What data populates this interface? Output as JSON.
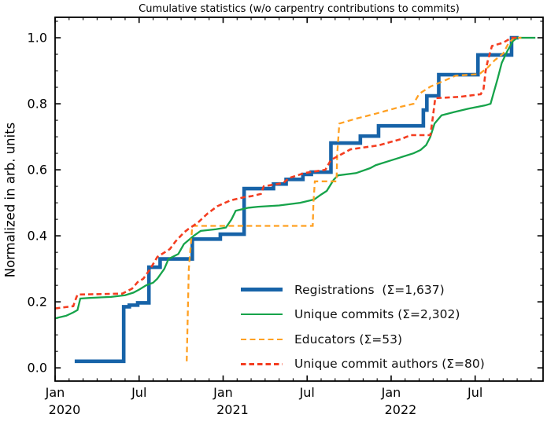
{
  "title": "Cumulative statistics (w/o carpentry contributions to commits)",
  "ylabel": "Normalized in arb. units",
  "legend": {
    "frame": false,
    "items": [
      {
        "label": "Registrations  (Σ=1,637)"
      },
      {
        "label": "Unique commits (Σ=2,302)"
      },
      {
        "label": "Educators (Σ=53)"
      },
      {
        "label": "Unique commit authors (Σ=80)"
      }
    ]
  },
  "chart_data": {
    "type": "line",
    "title": "Cumulative statistics (w/o carpentry contributions to commits)",
    "xlabel": "",
    "ylabel": "Normalized in arb. units",
    "grid": false,
    "legend_position": "lower-right-inside",
    "x_unit": "months since 2020-01-01",
    "xlim": [
      0,
      34.85
    ],
    "ylim": [
      -0.04,
      1.062
    ],
    "y_major_ticks": [
      {
        "v": 0.0,
        "label": "0.0"
      },
      {
        "v": 0.2,
        "label": "0.2"
      },
      {
        "v": 0.4,
        "label": "0.4"
      },
      {
        "v": 0.6,
        "label": "0.6"
      },
      {
        "v": 0.8,
        "label": "0.8"
      },
      {
        "v": 1.0,
        "label": "1.0"
      }
    ],
    "y_minor_step": 0.05,
    "x_major_ticks": [
      {
        "m": 0,
        "month_label": "Jan",
        "year_label": "2020"
      },
      {
        "m": 6,
        "month_label": "Jul",
        "year_label": ""
      },
      {
        "m": 12,
        "month_label": "Jan",
        "year_label": "2021"
      },
      {
        "m": 18,
        "month_label": "Jul",
        "year_label": ""
      },
      {
        "m": 24,
        "month_label": "Jan",
        "year_label": "2022"
      },
      {
        "m": 30,
        "month_label": "Jul",
        "year_label": ""
      }
    ],
    "x_minor_tick_every_months": 1,
    "series": [
      {
        "name": "Registrations  (Σ=1,637)",
        "total": 1637,
        "color": "#1763a8",
        "width": 4.6,
        "dash": null,
        "points": [
          [
            1.4,
            0.02
          ],
          [
            4.9,
            0.02
          ],
          [
            4.9,
            0.185
          ],
          [
            5.3,
            0.185
          ],
          [
            5.3,
            0.19
          ],
          [
            5.9,
            0.19
          ],
          [
            5.9,
            0.197
          ],
          [
            6.7,
            0.197
          ],
          [
            6.7,
            0.305
          ],
          [
            7.5,
            0.305
          ],
          [
            7.5,
            0.33
          ],
          [
            9.8,
            0.33
          ],
          [
            9.8,
            0.39
          ],
          [
            11.8,
            0.39
          ],
          [
            11.8,
            0.405
          ],
          [
            13.5,
            0.405
          ],
          [
            13.5,
            0.543
          ],
          [
            15.6,
            0.543
          ],
          [
            15.6,
            0.557
          ],
          [
            16.5,
            0.557
          ],
          [
            16.5,
            0.571
          ],
          [
            17.7,
            0.571
          ],
          [
            17.7,
            0.586
          ],
          [
            18.3,
            0.586
          ],
          [
            18.3,
            0.593
          ],
          [
            19.7,
            0.593
          ],
          [
            19.7,
            0.681
          ],
          [
            21.8,
            0.681
          ],
          [
            21.8,
            0.702
          ],
          [
            23.1,
            0.702
          ],
          [
            23.1,
            0.733
          ],
          [
            26.3,
            0.733
          ],
          [
            26.3,
            0.781
          ],
          [
            26.55,
            0.781
          ],
          [
            26.55,
            0.824
          ],
          [
            27.4,
            0.824
          ],
          [
            27.4,
            0.888
          ],
          [
            30.2,
            0.888
          ],
          [
            30.2,
            0.948
          ],
          [
            32.6,
            0.948
          ],
          [
            32.6,
            1.0
          ],
          [
            33.1,
            1.0
          ]
        ]
      },
      {
        "name": "Unique commits (Σ=2,302)",
        "total": 2302,
        "color": "#16a34a",
        "width": 2.3,
        "dash": null,
        "points": [
          [
            0,
            0.15
          ],
          [
            0.8,
            0.158
          ],
          [
            1.3,
            0.168
          ],
          [
            1.6,
            0.175
          ],
          [
            1.8,
            0.21
          ],
          [
            2.5,
            0.212
          ],
          [
            4.0,
            0.215
          ],
          [
            5.0,
            0.22
          ],
          [
            5.6,
            0.228
          ],
          [
            6.0,
            0.237
          ],
          [
            6.5,
            0.25
          ],
          [
            7.0,
            0.258
          ],
          [
            7.3,
            0.27
          ],
          [
            7.8,
            0.3
          ],
          [
            8.1,
            0.33
          ],
          [
            8.8,
            0.345
          ],
          [
            9.2,
            0.375
          ],
          [
            9.9,
            0.4
          ],
          [
            10.4,
            0.415
          ],
          [
            11.5,
            0.42
          ],
          [
            12.2,
            0.425
          ],
          [
            12.6,
            0.45
          ],
          [
            12.9,
            0.476
          ],
          [
            13.8,
            0.485
          ],
          [
            14.5,
            0.488
          ],
          [
            16.0,
            0.492
          ],
          [
            17.5,
            0.5
          ],
          [
            18.5,
            0.51
          ],
          [
            19.0,
            0.525
          ],
          [
            19.4,
            0.536
          ],
          [
            19.9,
            0.57
          ],
          [
            20.2,
            0.583
          ],
          [
            21.5,
            0.59
          ],
          [
            22.5,
            0.605
          ],
          [
            22.9,
            0.614
          ],
          [
            23.8,
            0.626
          ],
          [
            24.7,
            0.638
          ],
          [
            25.6,
            0.65
          ],
          [
            26.1,
            0.66
          ],
          [
            26.5,
            0.675
          ],
          [
            26.8,
            0.7
          ],
          [
            27.1,
            0.74
          ],
          [
            27.6,
            0.765
          ],
          [
            28.5,
            0.775
          ],
          [
            29.5,
            0.785
          ],
          [
            30.7,
            0.795
          ],
          [
            31.1,
            0.8
          ],
          [
            31.3,
            0.83
          ],
          [
            31.6,
            0.875
          ],
          [
            31.9,
            0.924
          ],
          [
            32.3,
            0.96
          ],
          [
            32.7,
            0.99
          ],
          [
            33.0,
            1.0
          ],
          [
            34.3,
            1.0
          ]
        ]
      },
      {
        "name": "Educators (Σ=53)",
        "total": 53,
        "color": "#ffa022",
        "width": 2.3,
        "dash": "7,4.5",
        "points": [
          [
            9.4,
            0.02
          ],
          [
            9.55,
            0.3
          ],
          [
            9.8,
            0.43
          ],
          [
            18.4,
            0.43
          ],
          [
            18.45,
            0.5
          ],
          [
            18.55,
            0.565
          ],
          [
            20.1,
            0.565
          ],
          [
            20.15,
            0.65
          ],
          [
            20.3,
            0.74
          ],
          [
            21.5,
            0.755
          ],
          [
            22.9,
            0.77
          ],
          [
            24.6,
            0.79
          ],
          [
            25.6,
            0.8
          ],
          [
            26.0,
            0.83
          ],
          [
            26.8,
            0.852
          ],
          [
            27.8,
            0.87
          ],
          [
            28.6,
            0.885
          ],
          [
            30.3,
            0.89
          ],
          [
            30.9,
            0.91
          ],
          [
            31.4,
            0.932
          ],
          [
            32.0,
            0.952
          ],
          [
            32.4,
            0.985
          ],
          [
            32.8,
            1.0
          ],
          [
            33.3,
            1.0
          ]
        ]
      },
      {
        "name": "Unique commit authors (Σ=80)",
        "total": 80,
        "color": "#f43d20",
        "width": 2.6,
        "dash": "6.5,4",
        "points": [
          [
            0,
            0.18
          ],
          [
            1.3,
            0.187
          ],
          [
            1.4,
            0.2
          ],
          [
            1.6,
            0.222
          ],
          [
            4.8,
            0.225
          ],
          [
            5.5,
            0.24
          ],
          [
            5.9,
            0.26
          ],
          [
            6.3,
            0.27
          ],
          [
            6.8,
            0.3
          ],
          [
            7.3,
            0.336
          ],
          [
            8.2,
            0.36
          ],
          [
            8.6,
            0.383
          ],
          [
            9.2,
            0.41
          ],
          [
            9.5,
            0.42
          ],
          [
            10.2,
            0.44
          ],
          [
            10.9,
            0.468
          ],
          [
            11.6,
            0.49
          ],
          [
            12.5,
            0.507
          ],
          [
            13.5,
            0.517
          ],
          [
            14.0,
            0.52
          ],
          [
            14.7,
            0.527
          ],
          [
            14.9,
            0.55
          ],
          [
            16.3,
            0.56
          ],
          [
            16.7,
            0.575
          ],
          [
            17.8,
            0.59
          ],
          [
            19.3,
            0.6
          ],
          [
            19.7,
            0.63
          ],
          [
            20.8,
            0.655
          ],
          [
            21.1,
            0.662
          ],
          [
            23.1,
            0.674
          ],
          [
            24.7,
            0.693
          ],
          [
            25.4,
            0.705
          ],
          [
            26.8,
            0.705
          ],
          [
            26.95,
            0.75
          ],
          [
            27.15,
            0.817
          ],
          [
            28.9,
            0.821
          ],
          [
            30.4,
            0.829
          ],
          [
            30.6,
            0.845
          ],
          [
            30.75,
            0.9
          ],
          [
            30.9,
            0.93
          ],
          [
            31.2,
            0.975
          ],
          [
            32.0,
            0.985
          ],
          [
            32.6,
            1.0
          ],
          [
            33.2,
            1.0
          ]
        ]
      }
    ]
  }
}
